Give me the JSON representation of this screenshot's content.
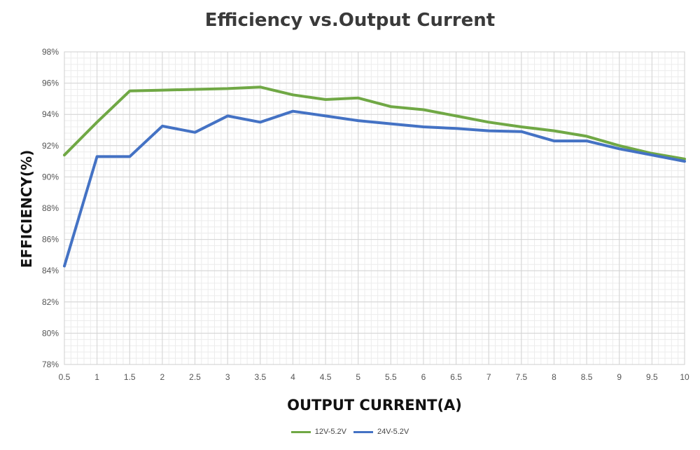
{
  "chart_data": {
    "type": "line",
    "title": "Efficiency vs.Output Current",
    "xlabel": "OUTPUT CURRENT(A)",
    "ylabel": "EFFICIENCY(%)",
    "x": [
      0.5,
      1,
      1.5,
      2,
      2.5,
      3,
      3.5,
      4,
      4.5,
      5,
      5.5,
      6,
      6.5,
      7,
      7.5,
      8,
      8.5,
      9,
      9.5,
      10
    ],
    "x_tick_labels": [
      "0.5",
      "1",
      "1.5",
      "2",
      "2.5",
      "3",
      "3.5",
      "4",
      "4.5",
      "5",
      "5.5",
      "6",
      "6.5",
      "7",
      "7.5",
      "8",
      "8.5",
      "9",
      "9.5",
      "10"
    ],
    "y_tick_labels": [
      "78%",
      "80%",
      "82%",
      "84%",
      "86%",
      "88%",
      "90%",
      "92%",
      "94%",
      "96%",
      "98%"
    ],
    "y_ticks": [
      78,
      80,
      82,
      84,
      86,
      88,
      90,
      92,
      94,
      96,
      98
    ],
    "xlim": [
      0.5,
      10
    ],
    "ylim": [
      78,
      98
    ],
    "grid": true,
    "minor_grid": true,
    "legend_position": "bottom",
    "series": [
      {
        "name": "12V-5.2V",
        "color": "#70a845",
        "values": [
          91.4,
          93.5,
          95.5,
          95.55,
          95.6,
          95.65,
          95.75,
          95.25,
          94.95,
          95.05,
          94.5,
          94.3,
          93.9,
          93.5,
          93.2,
          92.95,
          92.6,
          92.0,
          91.5,
          91.15
        ]
      },
      {
        "name": "24V-5.2V",
        "color": "#4472c4",
        "values": [
          84.3,
          91.3,
          91.3,
          93.25,
          92.85,
          93.9,
          93.5,
          94.2,
          93.9,
          93.6,
          93.4,
          93.2,
          93.1,
          92.95,
          92.9,
          92.3,
          92.3,
          91.8,
          91.4,
          91.0
        ]
      }
    ]
  }
}
